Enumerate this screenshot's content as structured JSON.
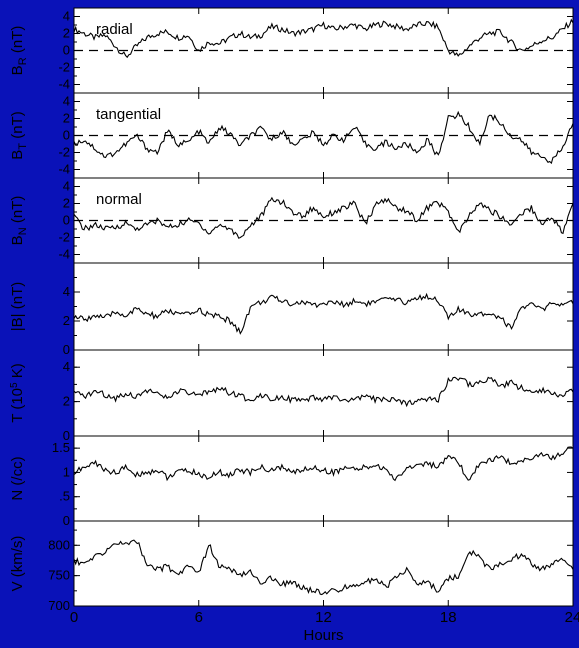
{
  "colors": {
    "frame": "#0a12b8",
    "panel": "#ffffff",
    "ink": "#000000"
  },
  "x_axis": {
    "label": "Hours",
    "ticks": [
      0,
      6,
      12,
      18,
      24
    ],
    "range": [
      0,
      24
    ]
  },
  "chart_data": [
    {
      "type": "line",
      "ylabel": "B_R (nT)",
      "annotation": "radial",
      "ylim": [
        -5,
        5
      ],
      "yticks": [
        "4",
        "2",
        "0",
        "-2",
        "-4"
      ],
      "ytick_values": [
        4,
        2,
        0,
        -2,
        -4
      ],
      "zero_line": true,
      "x": [
        0,
        0.5,
        1,
        1.5,
        2,
        2.5,
        3,
        3.5,
        4,
        4.5,
        5,
        5.5,
        6,
        6.5,
        7,
        7.5,
        8,
        8.5,
        9,
        9.5,
        10,
        10.5,
        11,
        11.5,
        12,
        12.5,
        13,
        13.5,
        14,
        14.5,
        15,
        15.5,
        16,
        16.5,
        17,
        17.5,
        18,
        18.5,
        19,
        19.5,
        20,
        20.5,
        21,
        21.5,
        22,
        22.5,
        23,
        23.5,
        24
      ],
      "y": [
        2.5,
        2,
        1.5,
        1.8,
        0.5,
        -0.8,
        0.5,
        1.5,
        2,
        2.2,
        1.5,
        1.8,
        0,
        1,
        0.8,
        1.5,
        2,
        1.5,
        1.8,
        2.8,
        2.5,
        2,
        2.2,
        2.5,
        3,
        2.5,
        2.8,
        3,
        2.5,
        3,
        3.2,
        2.8,
        2.5,
        3,
        3.2,
        2.8,
        0,
        -0.7,
        0.5,
        1.5,
        2,
        2.2,
        1,
        0,
        0.5,
        1.2,
        1.5,
        2.5,
        3.5
      ]
    },
    {
      "type": "line",
      "ylabel": "B_T (nT)",
      "annotation": "tangential",
      "ylim": [
        -5,
        5
      ],
      "yticks": [
        "4",
        "2",
        "0",
        "-2",
        "-4"
      ],
      "ytick_values": [
        4,
        2,
        0,
        -2,
        -4
      ],
      "zero_line": true,
      "x": [
        0,
        0.5,
        1,
        1.5,
        2,
        2.5,
        3,
        3.5,
        4,
        4.5,
        5,
        5.5,
        6,
        6.5,
        7,
        7.5,
        8,
        8.5,
        9,
        9.5,
        10,
        10.5,
        11,
        11.5,
        12,
        12.5,
        13,
        13.5,
        14,
        14.5,
        15,
        15.5,
        16,
        16.5,
        17,
        17.5,
        18,
        18.5,
        19,
        19.5,
        20,
        20.5,
        21,
        21.5,
        22,
        22.5,
        23,
        23.5,
        24
      ],
      "y": [
        -1,
        -0.5,
        -1.5,
        -2.5,
        -2,
        -1,
        0,
        -1.5,
        -2,
        0.5,
        -1,
        -0.8,
        0.5,
        -1,
        1,
        0.2,
        -1.2,
        0,
        0.8,
        -0.5,
        0.5,
        -1,
        -0.5,
        0.3,
        -1,
        0,
        -0.5,
        1,
        -1,
        -1.5,
        -0.8,
        -1.5,
        -1,
        -2,
        -0.5,
        -2.5,
        2,
        2.5,
        1,
        -1,
        2.5,
        1.5,
        0,
        -0.5,
        -2,
        -2.5,
        -3,
        -1.5,
        1.5
      ]
    },
    {
      "type": "line",
      "ylabel": "B_N (nT)",
      "annotation": "normal",
      "ylim": [
        -5,
        5
      ],
      "yticks": [
        "4",
        "2",
        "0",
        "-2",
        "-4"
      ],
      "ytick_values": [
        4,
        2,
        0,
        -2,
        -4
      ],
      "zero_line": true,
      "x": [
        0,
        0.5,
        1,
        1.5,
        2,
        2.5,
        3,
        3.5,
        4,
        4.5,
        5,
        5.5,
        6,
        6.5,
        7,
        7.5,
        8,
        8.5,
        9,
        9.5,
        10,
        10.5,
        11,
        11.5,
        12,
        12.5,
        13,
        13.5,
        14,
        14.5,
        15,
        15.5,
        16,
        16.5,
        17,
        17.5,
        18,
        18.5,
        19,
        19.5,
        20,
        20.5,
        21,
        21.5,
        22,
        22.5,
        23,
        23.5,
        24
      ],
      "y": [
        0.5,
        -1,
        -0.5,
        -1,
        -0.8,
        -0.3,
        -1,
        -0.5,
        0,
        -0.8,
        -0.5,
        0,
        -0.3,
        -1.5,
        -0.5,
        -1,
        -2,
        -0.5,
        0.5,
        2.5,
        2.2,
        1,
        0.5,
        1.5,
        0.5,
        1,
        1.5,
        2,
        -0.5,
        1.8,
        2.5,
        1.5,
        1.2,
        0,
        1.5,
        2.2,
        1,
        -1.5,
        0.5,
        2,
        1.2,
        0.5,
        -0.5,
        0.8,
        1.5,
        -0.5,
        0.5,
        -1.5,
        2
      ]
    },
    {
      "type": "line",
      "ylabel": "|B| (nT)",
      "ylim": [
        0,
        6
      ],
      "yticks": [
        "4",
        "2",
        "0"
      ],
      "ytick_values": [
        4,
        2,
        0
      ],
      "zero_line": false,
      "x": [
        0,
        0.5,
        1,
        1.5,
        2,
        2.5,
        3,
        3.5,
        4,
        4.5,
        5,
        5.5,
        6,
        6.5,
        7,
        7.5,
        8,
        8.5,
        9,
        9.5,
        10,
        10.5,
        11,
        11.5,
        12,
        12.5,
        13,
        13.5,
        14,
        14.5,
        15,
        15.5,
        16,
        16.5,
        17,
        17.5,
        18,
        18.5,
        19,
        19.5,
        20,
        20.5,
        21,
        21.5,
        22,
        22.5,
        23,
        23.5,
        24
      ],
      "y": [
        2.3,
        2.1,
        2.4,
        2.2,
        2.6,
        2.4,
        2.8,
        2.5,
        2.3,
        2.7,
        2.5,
        2.4,
        2.8,
        2.4,
        2.3,
        2,
        1.2,
        3,
        3.3,
        3.6,
        3.4,
        3.2,
        3.3,
        3.1,
        3.2,
        3.3,
        3.1,
        3.4,
        3.2,
        3.3,
        3.5,
        3.4,
        3.3,
        3.6,
        3.7,
        3.5,
        2.2,
        2.8,
        2.4,
        2.6,
        2.5,
        2.3,
        1.5,
        2.9,
        3.1,
        2.8,
        3.2,
        3,
        3.3
      ]
    },
    {
      "type": "line",
      "ylabel": "T (10^5 K)",
      "ylim": [
        0,
        5
      ],
      "yticks": [
        "4",
        "2",
        "0"
      ],
      "ytick_values": [
        4,
        2,
        0
      ],
      "zero_line": false,
      "x": [
        0,
        0.5,
        1,
        1.5,
        2,
        2.5,
        3,
        3.5,
        4,
        4.5,
        5,
        5.5,
        6,
        6.5,
        7,
        7.5,
        8,
        8.5,
        9,
        9.5,
        10,
        10.5,
        11,
        11.5,
        12,
        12.5,
        13,
        13.5,
        14,
        14.5,
        15,
        15.5,
        16,
        16.5,
        17,
        17.5,
        18,
        18.5,
        19,
        19.5,
        20,
        20.5,
        21,
        21.5,
        22,
        22.5,
        23,
        23.5,
        24
      ],
      "y": [
        2.5,
        2.3,
        2.6,
        2.4,
        2.2,
        2.5,
        2.3,
        2.7,
        2.4,
        2.2,
        2.6,
        2.5,
        2.3,
        2.6,
        2.8,
        2.5,
        2.3,
        2.1,
        2.4,
        2.2,
        2.3,
        2.1,
        2,
        2.2,
        2.1,
        2.3,
        2,
        2.1,
        2.3,
        2.1,
        2.2,
        2,
        1.9,
        2.1,
        2.2,
        2.1,
        3.2,
        3.4,
        3,
        3.1,
        3.3,
        2.9,
        3.1,
        2.8,
        2.6,
        2.7,
        2.5,
        2.4,
        2.6
      ]
    },
    {
      "type": "line",
      "ylabel": "N (/cc)",
      "ylim": [
        0,
        1.75
      ],
      "yticks": [
        "1.5",
        "1",
        ".5",
        "0"
      ],
      "ytick_values": [
        1.5,
        1,
        0.5,
        0
      ],
      "zero_line": false,
      "x": [
        0,
        0.5,
        1,
        1.5,
        2,
        2.5,
        3,
        3.5,
        4,
        4.5,
        5,
        5.5,
        6,
        6.5,
        7,
        7.5,
        8,
        8.5,
        9,
        9.5,
        10,
        10.5,
        11,
        11.5,
        12,
        12.5,
        13,
        13.5,
        14,
        14.5,
        15,
        15.5,
        16,
        16.5,
        17,
        17.5,
        18,
        18.5,
        19,
        19.5,
        20,
        20.5,
        21,
        21.5,
        22,
        22.5,
        23,
        23.5,
        24
      ],
      "y": [
        1,
        1.1,
        1.2,
        1.05,
        1,
        1.1,
        0.95,
        1,
        1.05,
        0.9,
        1,
        1.05,
        0.95,
        0.9,
        1,
        0.95,
        1.05,
        1,
        1.1,
        1.05,
        1.1,
        1,
        1.05,
        1.1,
        1.05,
        1,
        1.1,
        1.05,
        1.1,
        1.15,
        1.05,
        0.85,
        1.1,
        1.15,
        1.2,
        1.1,
        1.3,
        1.2,
        0.8,
        1.2,
        1.25,
        1.3,
        1.2,
        1.25,
        1.3,
        1.35,
        1.3,
        1.4,
        1.55
      ]
    },
    {
      "type": "line",
      "ylabel": "V (km/s)",
      "ylim": [
        700,
        840
      ],
      "yticks": [
        "800",
        "750",
        "700"
      ],
      "ytick_values": [
        800,
        750,
        700
      ],
      "zero_line": false,
      "x": [
        0,
        0.5,
        1,
        1.5,
        2,
        2.5,
        3,
        3.5,
        4,
        4.5,
        5,
        5.5,
        6,
        6.5,
        7,
        7.5,
        8,
        8.5,
        9,
        9.5,
        10,
        10.5,
        11,
        11.5,
        12,
        12.5,
        13,
        13.5,
        14,
        14.5,
        15,
        15.5,
        16,
        16.5,
        17,
        17.5,
        18,
        18.5,
        19,
        19.5,
        20,
        20.5,
        21,
        21.5,
        22,
        22.5,
        23,
        23.5,
        24
      ],
      "y": [
        775,
        770,
        780,
        790,
        805,
        800,
        810,
        770,
        760,
        765,
        750,
        770,
        755,
        800,
        765,
        760,
        750,
        755,
        740,
        745,
        735,
        740,
        730,
        725,
        720,
        725,
        730,
        735,
        740,
        745,
        730,
        750,
        760,
        735,
        740,
        725,
        745,
        750,
        790,
        780,
        760,
        770,
        775,
        785,
        770,
        760,
        770,
        775,
        760
      ]
    }
  ]
}
